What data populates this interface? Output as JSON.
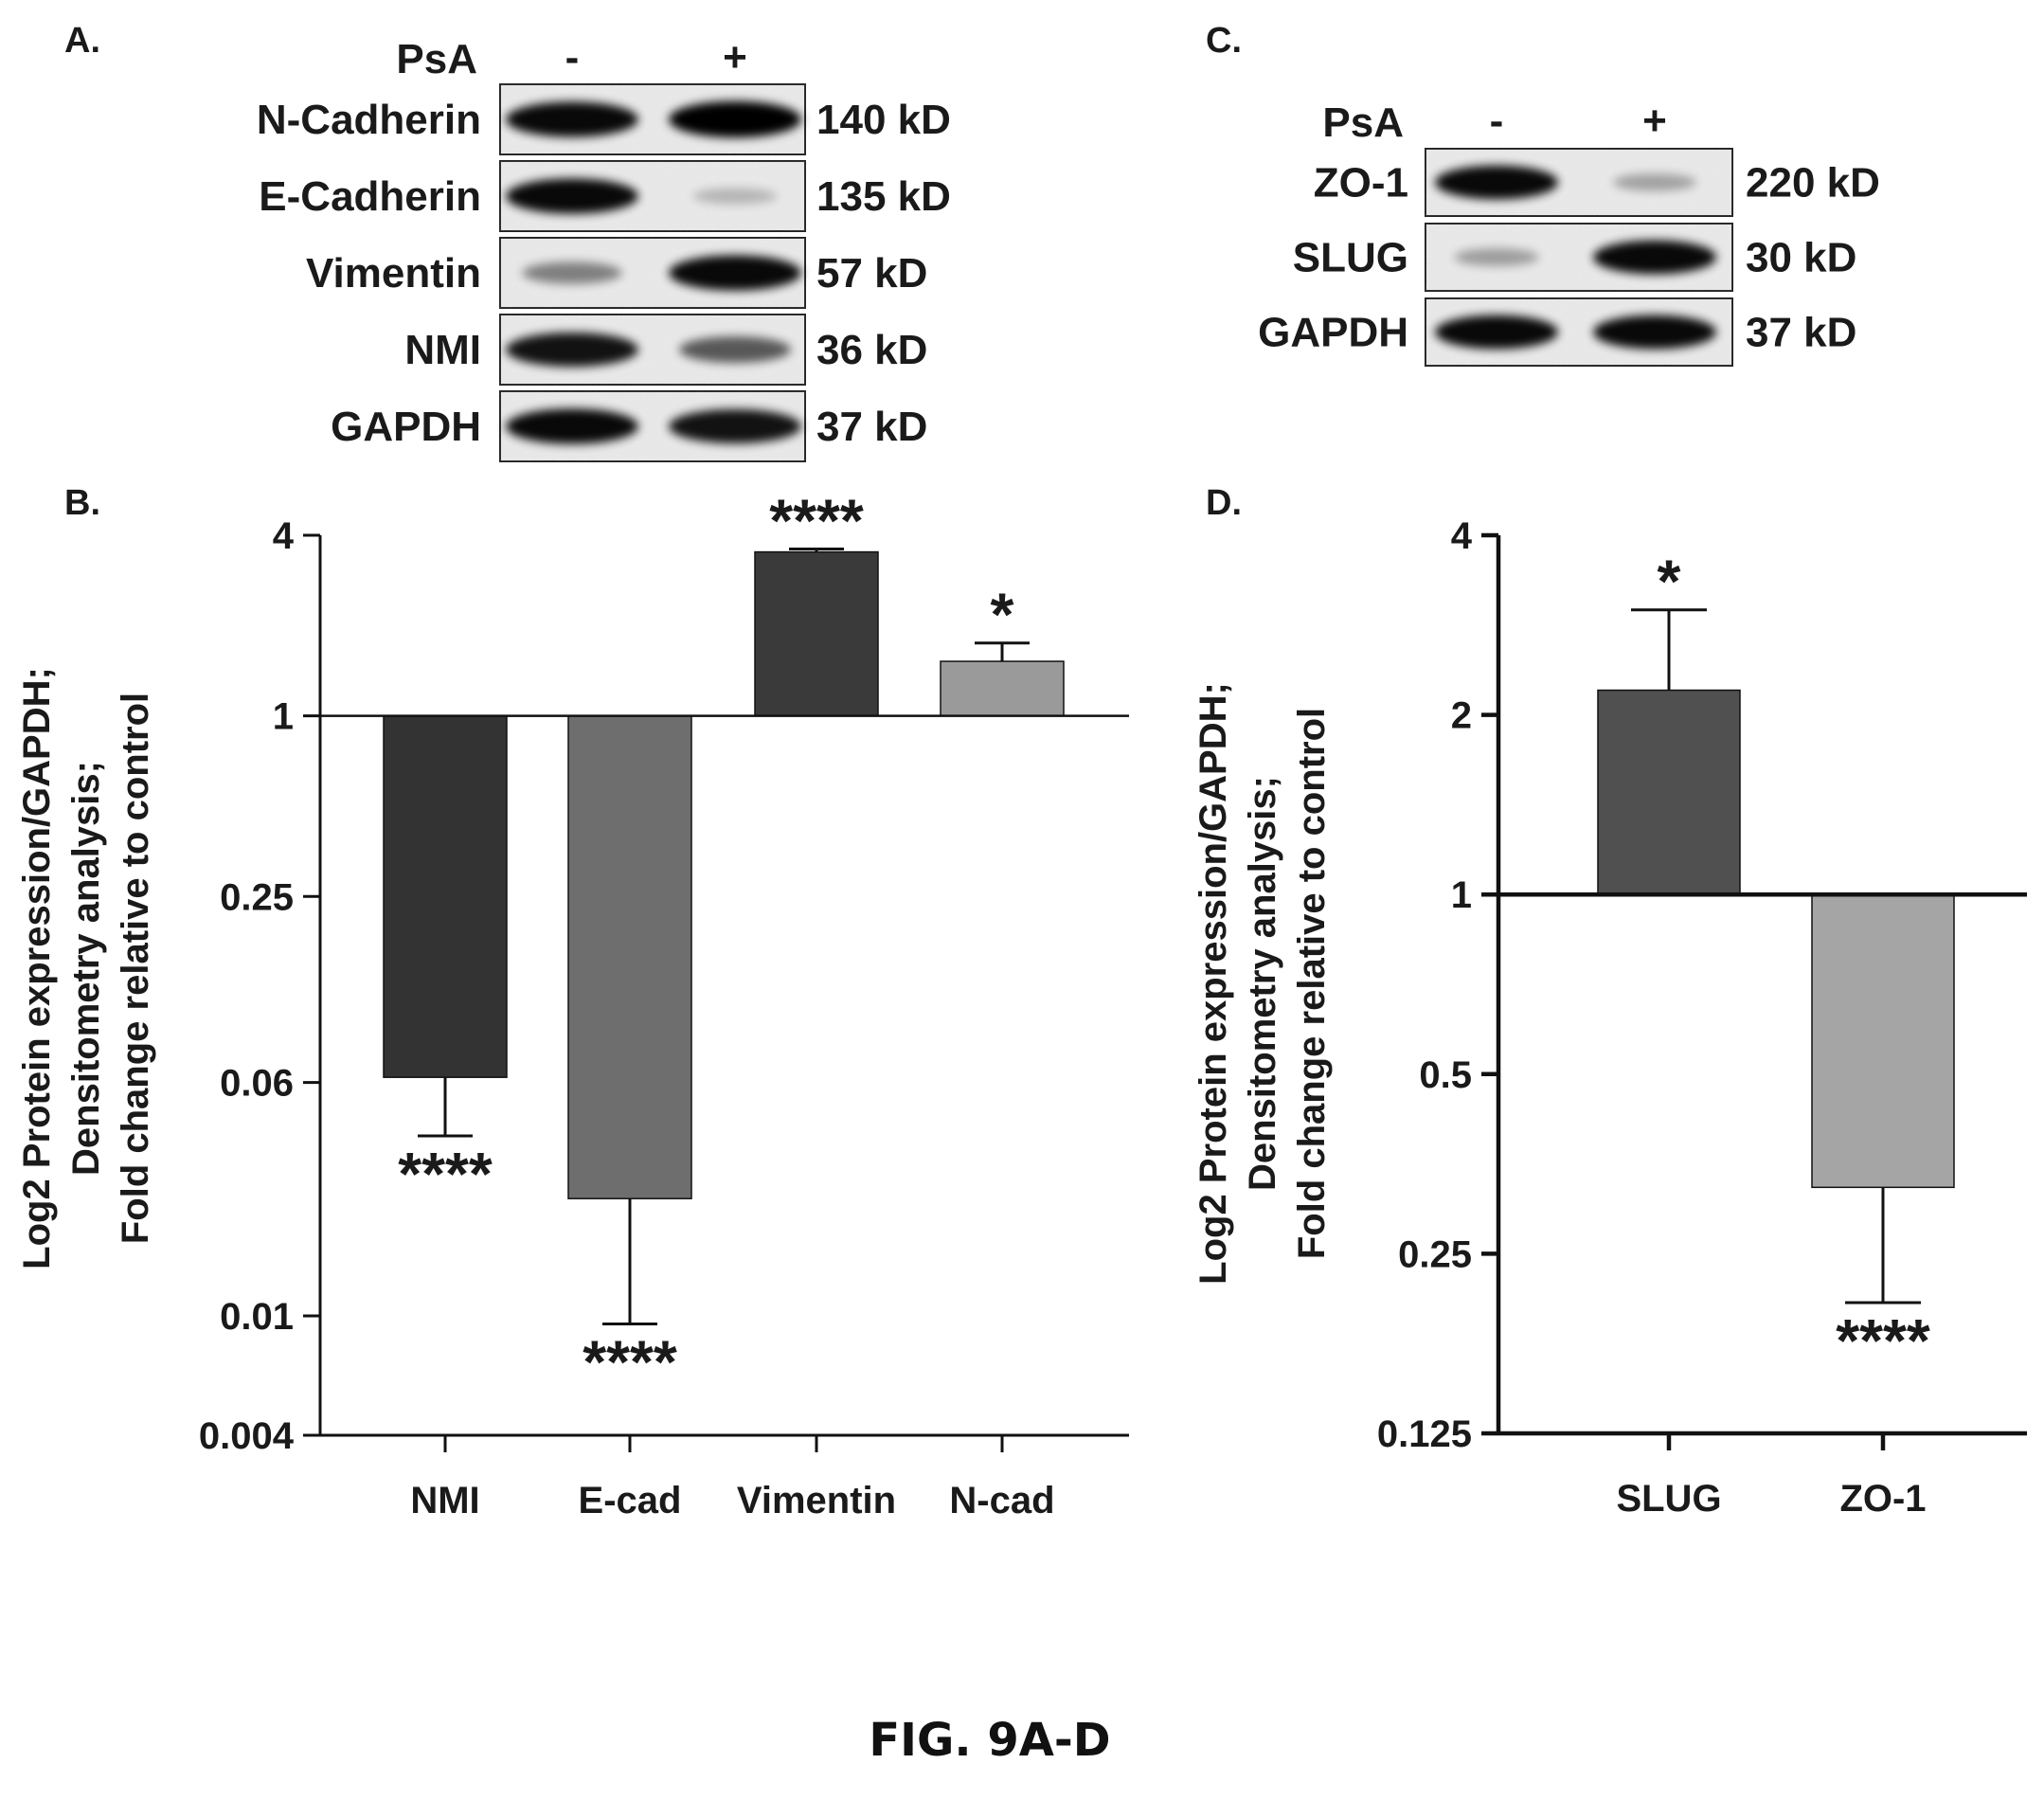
{
  "figure_caption": "FIG. 9A-D",
  "blot_a": {
    "panel": "A.",
    "treatment_label": "PsA",
    "lanes": [
      "-",
      "+"
    ],
    "rows": [
      {
        "protein": "N-Cadherin",
        "mw": "140 kD",
        "intensity": [
          0.95,
          1.0
        ]
      },
      {
        "protein": "E-Cadherin",
        "mw": "135 kD",
        "intensity": [
          0.95,
          0.08
        ]
      },
      {
        "protein": "Vimentin",
        "mw": "57 kD",
        "intensity": [
          0.35,
          0.95
        ]
      },
      {
        "protein": "NMI",
        "mw": "36 kD",
        "intensity": [
          0.9,
          0.55
        ]
      },
      {
        "protein": "GAPDH",
        "mw": "37 kD",
        "intensity": [
          0.95,
          0.9
        ]
      }
    ]
  },
  "blot_c": {
    "panel": "C.",
    "treatment_label": "PsA",
    "lanes": [
      "-",
      "+"
    ],
    "rows": [
      {
        "protein": "ZO-1",
        "mw": "220 kD",
        "intensity": [
          0.95,
          0.18
        ]
      },
      {
        "protein": "SLUG",
        "mw": "30 kD",
        "intensity": [
          0.2,
          0.95
        ]
      },
      {
        "protein": "GAPDH",
        "mw": "37 kD",
        "intensity": [
          0.95,
          0.95
        ]
      }
    ]
  },
  "chart_data": [
    {
      "panel": "B.",
      "type": "bar",
      "scale": "log2",
      "baseline": 1,
      "ylim": [
        0.004,
        4
      ],
      "yticks": [
        4,
        1,
        0.25,
        0.06,
        0.01,
        0.004
      ],
      "ylabel_lines": [
        "Log2 Protein expression/GAPDH;",
        "Densitometry analysis;",
        "Fold change relative to control"
      ],
      "categories": [
        "NMI",
        "E-cad",
        "Vimentin",
        "N-cad"
      ],
      "values": [
        0.0624,
        0.0246,
        3.52,
        1.52
      ],
      "error": [
        0.0398,
        0.0094,
        3.6,
        1.75
      ],
      "significance": [
        "****",
        "****",
        "****",
        "*"
      ],
      "colors": [
        "#333333",
        "#6e6e6e",
        "#3a3a3a",
        "#9a9a9a"
      ]
    },
    {
      "panel": "D.",
      "type": "bar",
      "scale": "log2",
      "baseline": 1,
      "ylim": [
        0.125,
        4
      ],
      "yticks": [
        4,
        2,
        1,
        0.5,
        0.25,
        0.125
      ],
      "ylabel_lines": [
        "Log2 Protein expression/GAPDH;",
        "Densitometry analysis;",
        "Fold change relative to control"
      ],
      "categories": [
        "SLUG",
        "ZO-1"
      ],
      "values": [
        2.2,
        0.323
      ],
      "error": [
        3.0,
        0.207
      ],
      "significance": [
        "*",
        "****"
      ],
      "colors": [
        "#505050",
        "#a5a5a5"
      ]
    }
  ]
}
